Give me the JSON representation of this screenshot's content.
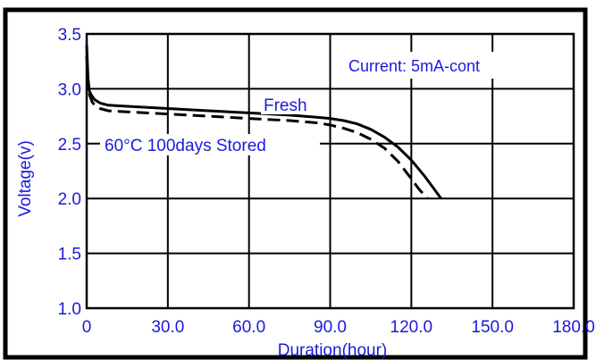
{
  "chart_data": {
    "type": "line",
    "title": "",
    "xlabel": "Duration(hour)",
    "ylabel": "Voltage(v)",
    "xlim": [
      0,
      180
    ],
    "ylim": [
      1.0,
      3.5
    ],
    "grid": true,
    "xticks": [
      "0",
      "30.0",
      "60.0",
      "90.0",
      "120.0",
      "150.0",
      "180.0"
    ],
    "yticks": [
      "1.0",
      "1.5",
      "2.0",
      "2.5",
      "3.0",
      "3.5"
    ],
    "annotation": "Current: 5mA-cont",
    "series": [
      {
        "name": "Fresh",
        "style": "solid",
        "x": [
          0,
          0.5,
          1,
          2,
          3,
          5,
          8,
          15,
          30,
          45,
          60,
          75,
          85,
          90,
          95,
          100,
          105,
          110,
          115,
          120,
          125,
          128,
          131
        ],
        "y": [
          3.4,
          3.1,
          2.98,
          2.93,
          2.9,
          2.87,
          2.85,
          2.84,
          2.82,
          2.8,
          2.78,
          2.76,
          2.74,
          2.73,
          2.71,
          2.68,
          2.63,
          2.56,
          2.47,
          2.35,
          2.2,
          2.1,
          2.0
        ]
      },
      {
        "name": "60°C 100days Stored",
        "style": "dashed",
        "x": [
          0,
          0.5,
          1,
          2,
          3,
          5,
          8,
          15,
          30,
          45,
          60,
          75,
          85,
          90,
          95,
          100,
          105,
          110,
          115,
          120,
          123,
          126
        ],
        "y": [
          3.3,
          3.05,
          2.95,
          2.88,
          2.85,
          2.82,
          2.8,
          2.79,
          2.77,
          2.75,
          2.73,
          2.71,
          2.69,
          2.67,
          2.64,
          2.6,
          2.54,
          2.46,
          2.34,
          2.18,
          2.08,
          2.0
        ]
      }
    ],
    "colors": {
      "text": "#1a1adb",
      "line": "#000000",
      "frame": "#000000"
    }
  }
}
